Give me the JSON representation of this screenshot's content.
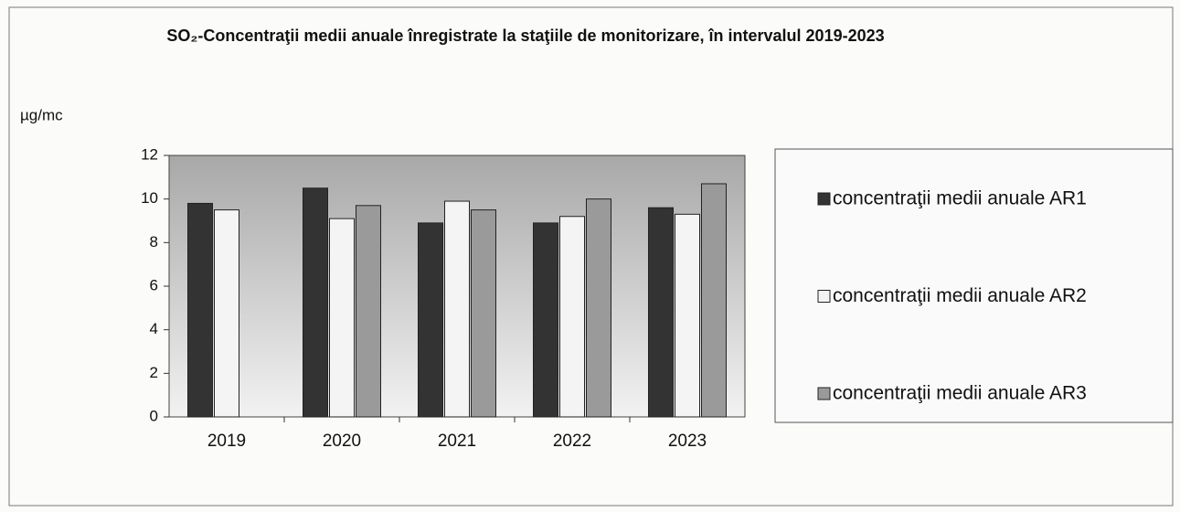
{
  "chart_data": {
    "type": "bar",
    "title": "SO₂-Concentraţii medii anuale înregistrate la staţiile de monitorizare, în intervalul 2019-2023",
    "y_label": "µg/mc",
    "categories": [
      "2019",
      "2020",
      "2021",
      "2022",
      "2023"
    ],
    "series": [
      {
        "name": "concentraţii medii anuale AR1",
        "color": "#333333",
        "values": [
          9.8,
          10.5,
          8.9,
          8.9,
          9.6
        ]
      },
      {
        "name": "concentraţii medii anuale AR2",
        "color": "#f4f4f4",
        "values": [
          9.5,
          9.1,
          9.9,
          9.2,
          9.3
        ]
      },
      {
        "name": "concentraţii medii anuale AR3",
        "color": "#9a9a9a",
        "values": [
          null,
          9.7,
          9.5,
          10.0,
          10.7
        ]
      }
    ],
    "ylim": [
      0,
      12
    ],
    "yticks": [
      0,
      2,
      4,
      6,
      8,
      10,
      12
    ],
    "grid": false,
    "legend": "right"
  }
}
